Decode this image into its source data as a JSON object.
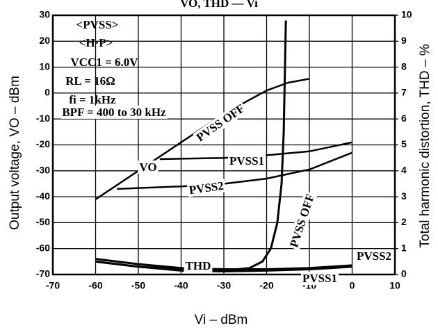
{
  "chart_data": {
    "type": "line",
    "title": "VO, THD — Vi",
    "x_label": "Vi – dBm",
    "y_label": "Output voltage, VO – dBm",
    "y2_label": "Total harmonic distortion, THD – %",
    "xlim": [
      -70,
      10
    ],
    "xticks": [
      -70,
      -60,
      -50,
      -40,
      -30,
      -20,
      -10,
      0,
      10
    ],
    "ylim": [
      -70,
      30
    ],
    "yticks": [
      30,
      20,
      10,
      0,
      -10,
      -20,
      -30,
      -40,
      -50,
      -60,
      -70
    ],
    "y2lim": [
      0,
      10
    ],
    "y2ticks": [
      10,
      9,
      8,
      7,
      6,
      5,
      4,
      3,
      2,
      1,
      0
    ],
    "grid": true,
    "annotations": [
      "<PVSS>",
      "<H·P>",
      "VCC1 = 6.0V",
      "RL = 16Ω",
      "fi = 1kHz",
      "BPF = 400 to 30 kHz",
      "VO",
      "THD"
    ],
    "series": [
      {
        "name": "PVSS OFF",
        "color": "#000000",
        "x": [
          -60,
          -50,
          -40,
          -30,
          -20,
          -15,
          -10
        ],
        "values": [
          -41,
          -30,
          -19,
          -8,
          1,
          4,
          5.5
        ]
      },
      {
        "name": "PVSS1",
        "color": "#000000",
        "x": [
          -45,
          -30,
          -20,
          -10,
          0
        ],
        "values": [
          -25.5,
          -25,
          -24,
          -22.5,
          -19
        ]
      },
      {
        "name": "PVSS2",
        "color": "#000000",
        "x": [
          -55,
          -40,
          -30,
          -20,
          -10,
          0
        ],
        "values": [
          -37,
          -36,
          -35,
          -33,
          -29.5,
          -23
        ]
      },
      {
        "name": "PVSS OFF",
        "color": "#000000",
        "axis": "y2",
        "x": [
          -60,
          -50,
          -40,
          -30,
          -24,
          -21,
          -19,
          -17.5,
          -16.5,
          -16,
          -15.7,
          -15.5
        ],
        "values": [
          0.5,
          0.3,
          0.2,
          0.15,
          0.25,
          0.5,
          1,
          2,
          3.5,
          5.5,
          8,
          9.8
        ]
      },
      {
        "name": "PVSS1",
        "color": "#000000",
        "axis": "y2",
        "x": [
          -60,
          -50,
          -40,
          -30,
          -20,
          -10,
          0
        ],
        "values": [
          0.6,
          0.4,
          0.25,
          0.2,
          0.2,
          0.25,
          0.35
        ]
      },
      {
        "name": "PVSS2",
        "color": "#000000",
        "axis": "y2",
        "x": [
          -60,
          -50,
          -40,
          -30,
          -20,
          -10,
          -5,
          0
        ],
        "values": [
          0.5,
          0.3,
          0.15,
          0.12,
          0.15,
          0.2,
          0.25,
          0.3
        ]
      }
    ]
  }
}
